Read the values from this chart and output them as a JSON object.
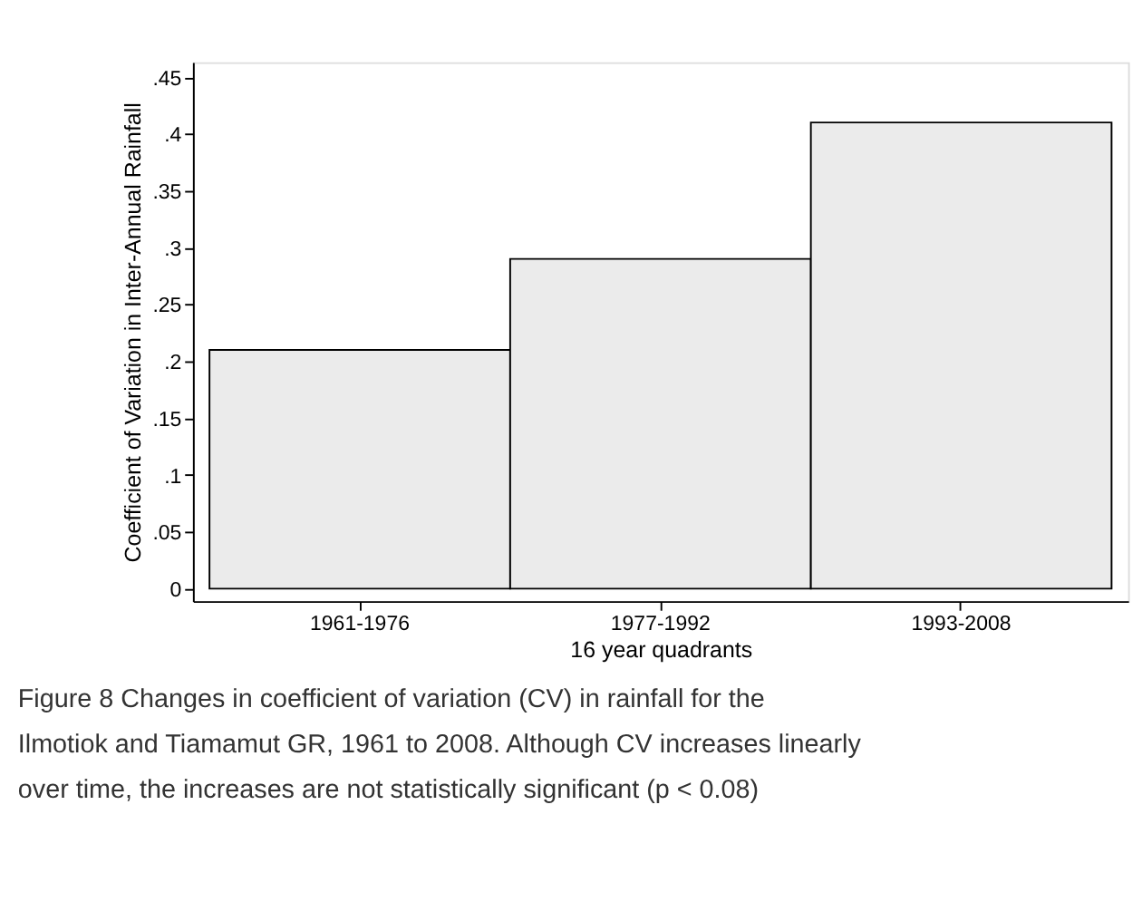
{
  "chart_data": {
    "type": "bar",
    "categories": [
      "1961-1976",
      "1977-1992",
      "1993-2008"
    ],
    "values": [
      0.21,
      0.29,
      0.41
    ],
    "color": "#ebebeb",
    "xlabel": "16 year quadrants",
    "ylabel": "Coefficient of Variation in Inter-Annual Rainfall",
    "ylim": [
      -0.011,
      0.463
    ],
    "yticks": [
      {
        "value": 0,
        "label": "0"
      },
      {
        "value": 0.05,
        "label": ".05"
      },
      {
        "value": 0.1,
        "label": ".1"
      },
      {
        "value": 0.15,
        "label": ".15"
      },
      {
        "value": 0.2,
        "label": ".2"
      },
      {
        "value": 0.25,
        "label": ".25"
      },
      {
        "value": 0.3,
        "label": ".3"
      },
      {
        "value": 0.35,
        "label": ".35"
      },
      {
        "value": 0.4,
        "label": ".4"
      },
      {
        "value": 0.45,
        "label": ".45"
      }
    ],
    "grid": false,
    "annotations": [
      "Figure 8 Changes in coefficient of variation (CV) in rainfall for the Ilmotiok and Tiamamut GR, 1961 to 2008. Although CV increases linearly over time, the increases are not statistically significant (p < 0.08)"
    ]
  }
}
